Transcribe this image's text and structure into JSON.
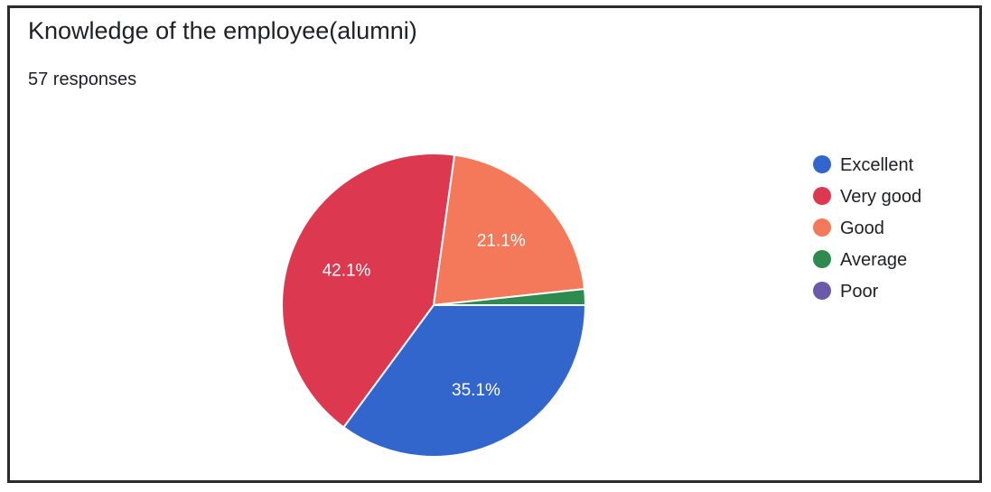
{
  "title": "Knowledge of the employee(alumni)",
  "subtitle": "57 responses",
  "chart_data": {
    "type": "pie",
    "categories": [
      "Excellent",
      "Very good",
      "Good",
      "Average",
      "Poor"
    ],
    "values": [
      35.1,
      42.1,
      21.1,
      1.7,
      0
    ],
    "value_labels": [
      "35.1%",
      "42.1%",
      "21.1%",
      "",
      ""
    ],
    "colors": [
      "#3366cc",
      "#dc3950",
      "#f4795a",
      "#2e8b4f",
      "#6a5aa8"
    ],
    "legend_position": "right",
    "start": "top",
    "direction": "clockwise"
  }
}
